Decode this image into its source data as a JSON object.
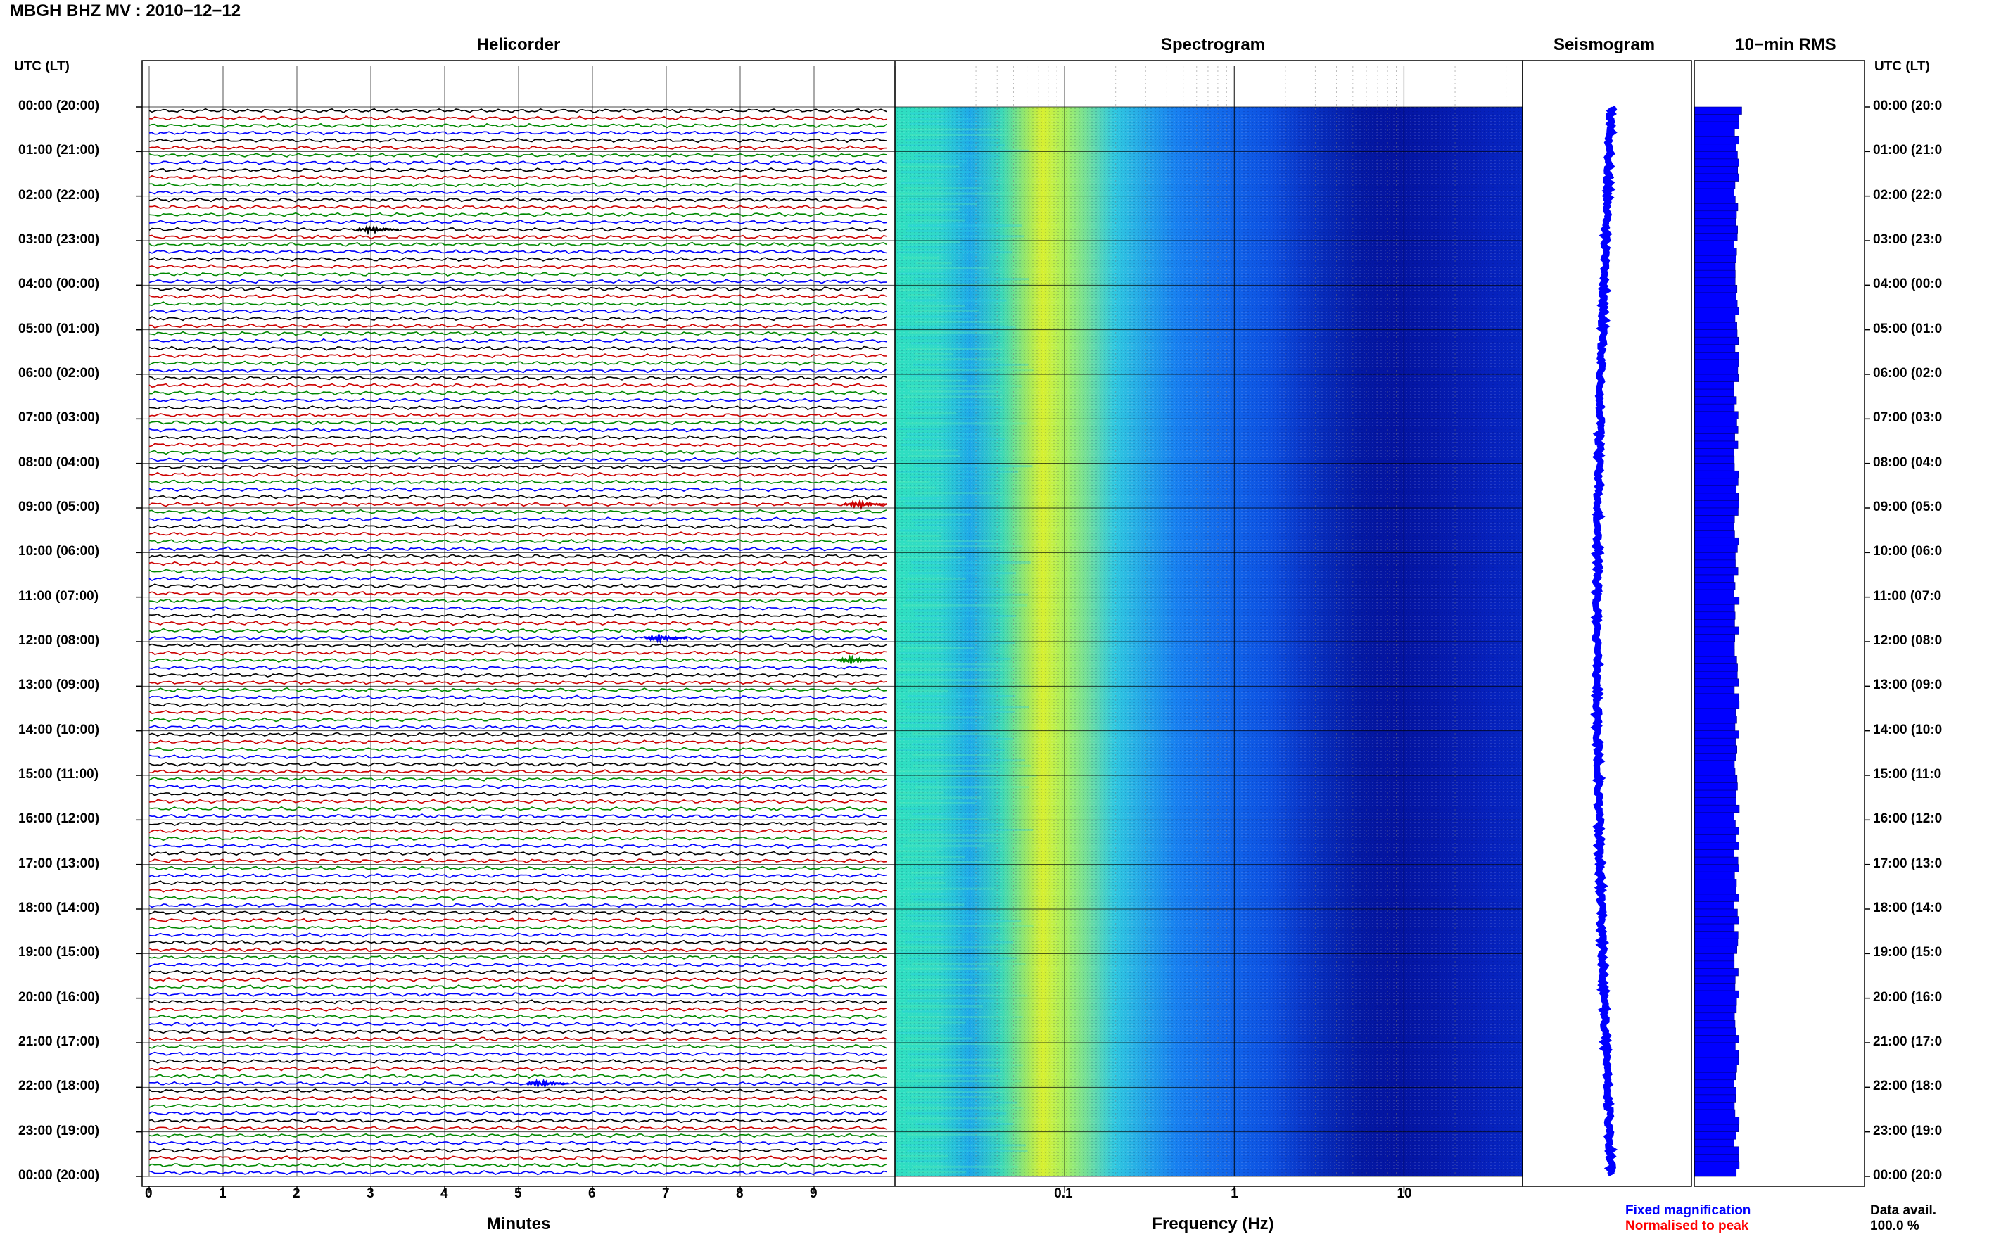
{
  "header": {
    "title": "MBGH BHZ MV : 2010−12−12"
  },
  "panels": {
    "helicorder": "Helicorder",
    "spectrogram": "Spectrogram",
    "seismogram": "Seismogram",
    "rms": "10−min RMS"
  },
  "left_axis_label": "UTC (LT)",
  "right_axis_label": "UTC (LT)",
  "time_labels": [
    "00:00 (20:00)",
    "01:00 (21:00)",
    "02:00 (22:00)",
    "03:00 (23:00)",
    "04:00 (00:00)",
    "05:00 (01:00)",
    "06:00 (02:00)",
    "07:00 (03:00)",
    "08:00 (04:00)",
    "09:00 (05:00)",
    "10:00 (06:00)",
    "11:00 (07:00)",
    "12:00 (08:00)",
    "13:00 (09:00)",
    "14:00 (10:00)",
    "15:00 (11:00)",
    "16:00 (12:00)",
    "17:00 (13:00)",
    "18:00 (14:00)",
    "19:00 (15:00)",
    "20:00 (16:00)",
    "21:00 (17:00)",
    "22:00 (18:00)",
    "23:00 (19:00)",
    "00:00 (20:00)"
  ],
  "right_time_labels": [
    "00:00 (20:0",
    "01:00 (21:0",
    "02:00 (22:0",
    "03:00 (23:0",
    "04:00 (00:0",
    "05:00 (01:0",
    "06:00 (02:0",
    "07:00 (03:0",
    "08:00 (04:0",
    "09:00 (05:0",
    "10:00 (06:0",
    "11:00 (07:0",
    "12:00 (08:0",
    "13:00 (09:0",
    "14:00 (10:0",
    "15:00 (11:0",
    "16:00 (12:0",
    "17:00 (13:0",
    "18:00 (14:0",
    "19:00 (15:0",
    "20:00 (16:0",
    "21:00 (17:0",
    "22:00 (18:0",
    "23:00 (19:0",
    "00:00 (20:0"
  ],
  "legend": {
    "fixed": "Fixed magnification",
    "normalised": "Normalised to peak",
    "avail_label": "Data avail.",
    "avail_value": "100.0 %"
  },
  "colors": {
    "trace_cycle": [
      "#000000",
      "#cc0000",
      "#008800",
      "#0000ff"
    ],
    "seismogram": "#0000ff",
    "rms": "#0000ff",
    "fixed_legend": "#0000ff",
    "normalised_legend": "#ff0000"
  },
  "chart_data": [
    {
      "type": "line",
      "title": "Helicorder",
      "xlabel": "Minutes",
      "ylabel": "UTC (LT)",
      "xlim": [
        0,
        10
      ],
      "xticks": [
        "0",
        "1",
        "2",
        "3",
        "4",
        "5",
        "6",
        "7",
        "8",
        "9"
      ],
      "lines_per_hour": 6,
      "hours": 24,
      "grid": true,
      "events": [
        {
          "hour": 2,
          "line": 4,
          "minute": 3.0
        },
        {
          "hour": 8,
          "line": 5,
          "minute": 9.6
        },
        {
          "hour": 11,
          "line": 5,
          "minute": 6.9
        },
        {
          "hour": 12,
          "line": 2,
          "minute": 9.5
        },
        {
          "hour": 21,
          "line": 5,
          "minute": 5.3
        }
      ]
    },
    {
      "type": "heatmap",
      "title": "Spectrogram",
      "xlabel": "Frequency (Hz)",
      "xscale": "log",
      "xlim": [
        0.01,
        50
      ],
      "xticks": [
        "0.1",
        "1",
        "10"
      ],
      "colormap": "jet",
      "peak_frequency_hz": 0.25,
      "grid": true
    },
    {
      "type": "line",
      "title": "Seismogram",
      "legend": [
        "Fixed magnification",
        "Normalised to peak"
      ]
    },
    {
      "type": "bar",
      "title": "10−min RMS",
      "orientation": "horizontal",
      "bars": 144
    }
  ]
}
